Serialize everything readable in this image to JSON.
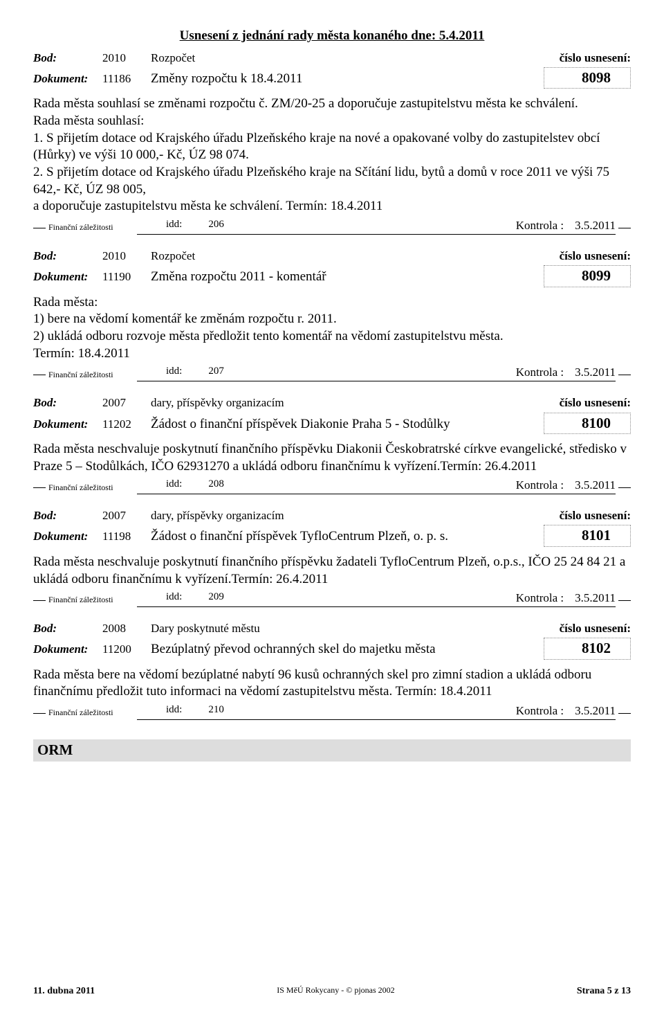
{
  "header_title": "Usnesení z  jednání rady města konaného dne: 5.4.2011",
  "labels": {
    "bod": "Bod:",
    "dokument": "Dokument:",
    "cislo": "číslo usnesení:",
    "idd": "idd:",
    "kontrola": "Kontrola :",
    "fin": "Finanční záležitosti"
  },
  "items": [
    {
      "bod_code": "2010",
      "bod_topic": "Rozpočet",
      "dok_code": "11186",
      "dok_subject": "Změny rozpočtu k 18.4.2011",
      "res_number": "8098",
      "body_text": "Rada města souhlasí se změnami rozpočtu č. ZM/20-25 a doporučuje zastupitelstvu města ke schválení.\nRada města souhlasí:\n1. S přijetím dotace od Krajského úřadu Plzeňského kraje na nové a opakované volby do zastupitelstev obcí (Hůrky) ve výši 10 000,- Kč, ÚZ 98 074.\n2. S přijetím dotace od Krajského úřadu Plzeňského kraje na Sčítání lidu, bytů a domů v roce 2011 ve výši 75 642,- Kč, ÚZ 98 005,\na doporučuje zastupitelstvu města ke schválení. Termín: 18.4.2011",
      "idd": "206",
      "kontrola_date": "3.5.2011"
    },
    {
      "bod_code": "2010",
      "bod_topic": "Rozpočet",
      "dok_code": "11190",
      "dok_subject": "Změna rozpočtu 2011 - komentář",
      "res_number": "8099",
      "body_text": "Rada města:\n1) bere na vědomí komentář ke změnám rozpočtu r. 2011.\n2) ukládá odboru rozvoje města předložit tento komentář na vědomí zastupitelstvu města.\nTermín: 18.4.2011",
      "idd": "207",
      "kontrola_date": "3.5.2011"
    },
    {
      "bod_code": "2007",
      "bod_topic": "dary, příspěvky organizacím",
      "dok_code": "11202",
      "dok_subject": "Žádost o finanční příspěvek Diakonie Praha 5 - Stodůlky",
      "res_number": "8100",
      "body_text": "Rada města neschvaluje poskytnutí finančního příspěvku Diakonii Českobratrské církve evangelické, středisko v Praze 5 – Stodůlkách, IČO 62931270 a ukládá odboru finančnímu k vyřízení.Termín: 26.4.2011",
      "idd": "208",
      "kontrola_date": "3.5.2011"
    },
    {
      "bod_code": "2007",
      "bod_topic": "dary, příspěvky organizacím",
      "dok_code": "11198",
      "dok_subject": "Žádost o finanční příspěvek TyfloCentrum Plzeň, o. p. s.",
      "res_number": "8101",
      "body_text": "Rada města neschvaluje poskytnutí finančního příspěvku žadateli TyfloCentrum Plzeň, o.p.s., IČO 25 24 84 21 a ukládá odboru finančnímu k vyřízení.Termín: 26.4.2011",
      "idd": "209",
      "kontrola_date": "3.5.2011"
    },
    {
      "bod_code": "2008",
      "bod_topic": "Dary poskytnuté městu",
      "dok_code": "11200",
      "dok_subject": "Bezúplatný převod ochranných skel do majetku města",
      "res_number": "8102",
      "body_text": "Rada města bere na vědomí bezúplatné nabytí 96 kusů ochranných skel pro zimní stadion a ukládá odboru finančnímu předložit tuto informaci na vědomí zastupitelstvu města. Termín: 18.4.2011",
      "idd": "210",
      "kontrola_date": "3.5.2011"
    }
  ],
  "section_footer": "ORM",
  "footer": {
    "left": "11. dubna 2011",
    "mid": "IS MěÚ Rokycany - © pjonas 2002",
    "right": "Strana 5 z 13"
  }
}
